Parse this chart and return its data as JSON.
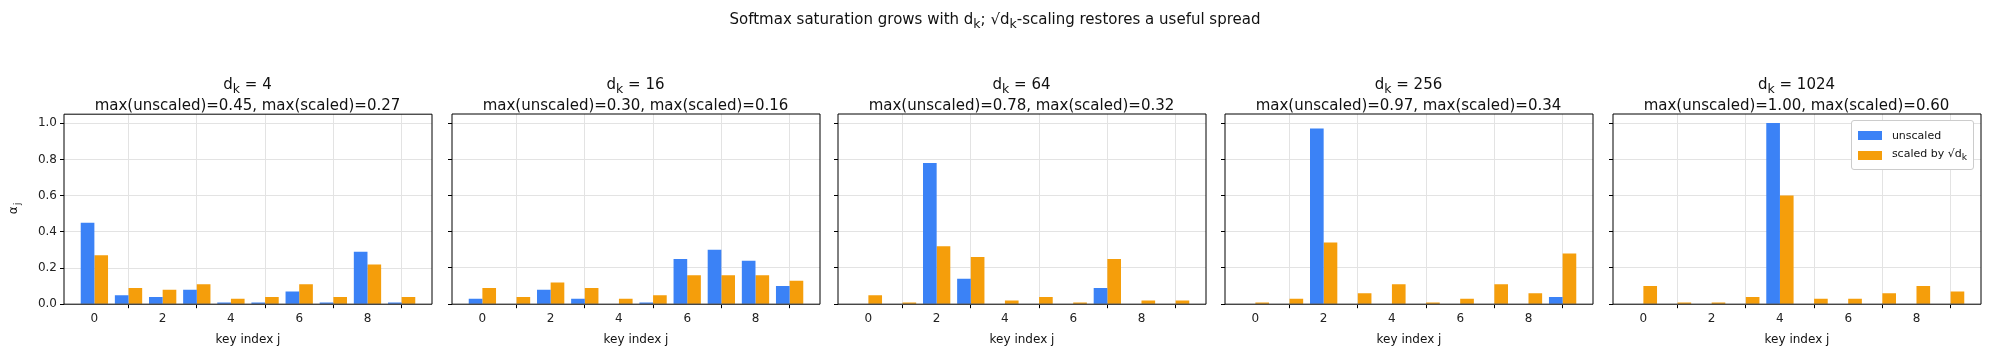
{
  "chart_data": [
    {
      "type": "bar",
      "title": "d$_{k}$ = 4",
      "subtitle": "max(unscaled)=0.45, max(scaled)=0.27",
      "xlabel": "key index j",
      "ylabel": "α$_{j}$",
      "annotations": [
        "Softmax saturation grows with d$_{k}$; √d$_{k}$-scaling restores a useful spread"
      ],
      "x": [
        0,
        1,
        2,
        3,
        4,
        5,
        6,
        7,
        8,
        9
      ],
      "xlim": [
        -0.89,
        9.89
      ],
      "xticks": [
        0,
        2,
        4,
        6,
        8
      ],
      "ylim": [
        0,
        1.05
      ],
      "yticks": [
        {
          "value": 0,
          "label": "0.0"
        },
        {
          "value": 0.2,
          "label": "0.2"
        },
        {
          "value": 0.4,
          "label": "0.4"
        },
        {
          "value": 0.6,
          "label": "0.6"
        },
        {
          "value": 0.8,
          "label": "0.8"
        },
        {
          "value": 1,
          "label": "1.0"
        }
      ],
      "grid": true,
      "series": [
        {
          "color": "#3b82f6",
          "values": [
            0.45,
            0.05,
            0.04,
            0.08,
            0.01,
            0.01,
            0.07,
            0.01,
            0.29,
            0.01
          ]
        },
        {
          "color": "#f59e0b",
          "values": [
            0.27,
            0.09,
            0.08,
            0.11,
            0.03,
            0.04,
            0.11,
            0.04,
            0.22,
            0.04
          ]
        }
      ]
    },
    {
      "type": "bar",
      "title": "d$_{k}$ = 16",
      "subtitle": "max(unscaled)=0.30, max(scaled)=0.16",
      "xlabel": "key index j",
      "x": [
        0,
        1,
        2,
        3,
        4,
        5,
        6,
        7,
        8,
        9
      ],
      "xlim": [
        -0.89,
        9.89
      ],
      "xticks": [
        0,
        2,
        4,
        6,
        8
      ],
      "ylim": [
        0,
        1.05
      ],
      "yticks": [
        {
          "value": 0,
          "label": null
        },
        {
          "value": 0.2,
          "label": null
        },
        {
          "value": 0.4,
          "label": null
        },
        {
          "value": 0.6,
          "label": null
        },
        {
          "value": 0.8,
          "label": null
        },
        {
          "value": 1,
          "label": null
        }
      ],
      "grid": true,
      "tick_labels": "x",
      "series": [
        {
          "color": "#3b82f6",
          "values": [
            0.03,
            0,
            0.08,
            0.03,
            0,
            0.01,
            0.25,
            0.3,
            0.24,
            0.1
          ]
        },
        {
          "color": "#f59e0b",
          "values": [
            0.09,
            0.04,
            0.12,
            0.09,
            0.03,
            0.05,
            0.16,
            0.16,
            0.16,
            0.13
          ]
        }
      ]
    },
    {
      "type": "bar",
      "title": "d$_{k}$ = 64",
      "subtitle": "max(unscaled)=0.78, max(scaled)=0.32",
      "xlabel": "key index j",
      "x": [
        0,
        1,
        2,
        3,
        4,
        5,
        6,
        7,
        8,
        9
      ],
      "xlim": [
        -0.89,
        9.89
      ],
      "xticks": [
        0,
        2,
        4,
        6,
        8
      ],
      "ylim": [
        0,
        1.05
      ],
      "yticks": [
        {
          "value": 0,
          "label": null
        },
        {
          "value": 0.2,
          "label": null
        },
        {
          "value": 0.4,
          "label": null
        },
        {
          "value": 0.6,
          "label": null
        },
        {
          "value": 0.8,
          "label": null
        },
        {
          "value": 1,
          "label": null
        }
      ],
      "grid": true,
      "tick_labels": "x",
      "series": [
        {
          "color": "#3b82f6",
          "values": [
            0,
            0,
            0.78,
            0.14,
            0,
            0,
            0,
            0.09,
            0,
            0
          ]
        },
        {
          "color": "#f59e0b",
          "values": [
            0.05,
            0.01,
            0.32,
            0.26,
            0.02,
            0.04,
            0.01,
            0.25,
            0.02,
            0.02
          ]
        }
      ]
    },
    {
      "type": "bar",
      "title": "d$_{k}$ = 256",
      "subtitle": "max(unscaled)=0.97, max(scaled)=0.34",
      "xlabel": "key index j",
      "x": [
        0,
        1,
        2,
        3,
        4,
        5,
        6,
        7,
        8,
        9
      ],
      "xlim": [
        -0.89,
        9.89
      ],
      "xticks": [
        0,
        2,
        4,
        6,
        8
      ],
      "ylim": [
        0,
        1.05
      ],
      "yticks": [
        {
          "value": 0,
          "label": null
        },
        {
          "value": 0.2,
          "label": null
        },
        {
          "value": 0.4,
          "label": null
        },
        {
          "value": 0.6,
          "label": null
        },
        {
          "value": 0.8,
          "label": null
        },
        {
          "value": 1,
          "label": null
        }
      ],
      "grid": true,
      "tick_labels": "x",
      "series": [
        {
          "color": "#3b82f6",
          "values": [
            0,
            0,
            0.97,
            0,
            0,
            0,
            0,
            0,
            0,
            0.04
          ]
        },
        {
          "color": "#f59e0b",
          "values": [
            0.01,
            0.03,
            0.34,
            0.06,
            0.11,
            0.01,
            0.03,
            0.11,
            0.06,
            0.28
          ]
        }
      ]
    },
    {
      "type": "bar",
      "title": "d$_{k}$ = 1024",
      "subtitle": "max(unscaled)=1.00, max(scaled)=0.60",
      "xlabel": "key index j",
      "x": [
        0,
        1,
        2,
        3,
        4,
        5,
        6,
        7,
        8,
        9
      ],
      "xlim": [
        -0.89,
        9.89
      ],
      "xticks": [
        0,
        2,
        4,
        6,
        8
      ],
      "ylim": [
        0,
        1.05
      ],
      "yticks": [
        {
          "value": 0,
          "label": null
        },
        {
          "value": 0.2,
          "label": null
        },
        {
          "value": 0.4,
          "label": null
        },
        {
          "value": 0.6,
          "label": null
        },
        {
          "value": 0.8,
          "label": null
        },
        {
          "value": 1,
          "label": null
        }
      ],
      "grid": true,
      "tick_labels": "x",
      "legend": "top right",
      "series": [
        {
          "name": "unscaled",
          "color": "#3b82f6",
          "values": [
            0,
            0,
            0,
            0,
            1,
            0,
            0,
            0,
            0,
            0
          ]
        },
        {
          "name": "scaled by √d$_{k}$",
          "color": "#f59e0b",
          "values": [
            0.1,
            0.01,
            0.01,
            0.04,
            0.6,
            0.03,
            0.03,
            0.06,
            0.1,
            0.07
          ]
        }
      ]
    }
  ]
}
